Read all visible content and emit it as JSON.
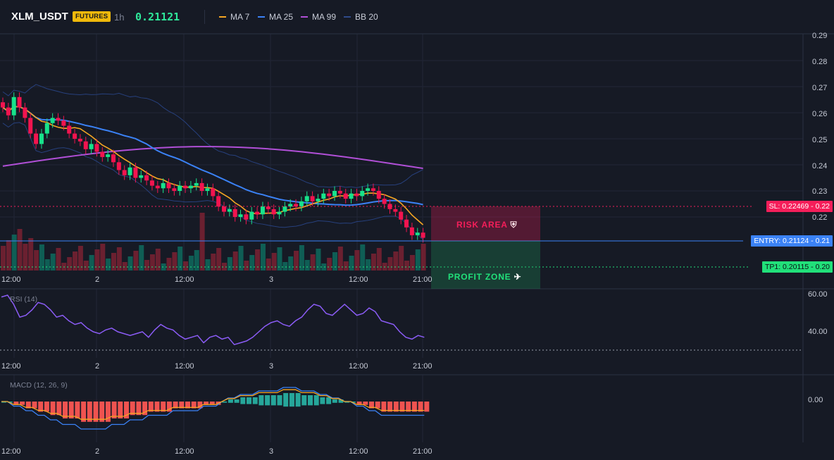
{
  "header": {
    "symbol": "XLM_USDT",
    "badge": "FUTURES",
    "timeframe": "1h",
    "price": "0.21121",
    "legend": [
      {
        "label": "MA 7",
        "color": "#f5a623"
      },
      {
        "label": "MA 25",
        "color": "#3b82f6"
      },
      {
        "label": "MA 99",
        "color": "#b04fd6"
      },
      {
        "label": "BB 20",
        "color": "#2f4a8a"
      }
    ]
  },
  "colors": {
    "up": "#17e38b",
    "down": "#f2144f",
    "background": "#161a25",
    "grid": "#212636"
  },
  "price_axis": {
    "ticks": [
      "0.29",
      "0.28",
      "0.27",
      "0.26",
      "0.25",
      "0.24",
      "0.23",
      "0.22",
      "0.21",
      "0.20"
    ],
    "markers": [
      {
        "label": "SL: 0.22469",
        "value": "0.22",
        "color": "#f51e5a"
      },
      {
        "label": "ENTRY: 0.21124",
        "value": "0.21",
        "color": "#3b82f6"
      },
      {
        "label": "TP1: 0.20115",
        "value": "0.20",
        "color": "#21e07a"
      }
    ]
  },
  "zones": {
    "risk": "RISK AREA",
    "profit": "PROFIT ZONE"
  },
  "time_axis": [
    "12:00",
    "2",
    "12:00",
    "3",
    "12:00",
    "21:00"
  ],
  "rsi": {
    "title": "RSI (14)",
    "ticks": [
      "60.00",
      "40.00"
    ]
  },
  "macd": {
    "title": "MACD (12, 26, 9)",
    "ticks": [
      "0.00"
    ]
  },
  "chart_data": {
    "type": "candlestick",
    "series": [
      {
        "name": "MA 7"
      },
      {
        "name": "MA 25"
      },
      {
        "name": "MA 99"
      },
      {
        "name": "BB 20"
      }
    ],
    "closes": [
      0.262,
      0.259,
      0.266,
      0.262,
      0.258,
      0.252,
      0.248,
      0.252,
      0.256,
      0.258,
      0.257,
      0.255,
      0.252,
      0.25,
      0.249,
      0.246,
      0.248,
      0.245,
      0.243,
      0.244,
      0.241,
      0.238,
      0.236,
      0.239,
      0.235,
      0.236,
      0.234,
      0.232,
      0.231,
      0.233,
      0.231,
      0.23,
      0.232,
      0.231,
      0.232,
      0.233,
      0.23,
      0.231,
      0.228,
      0.224,
      0.222,
      0.223,
      0.22,
      0.221,
      0.219,
      0.222,
      0.221,
      0.224,
      0.223,
      0.221,
      0.222,
      0.224,
      0.225,
      0.224,
      0.226,
      0.228,
      0.226,
      0.227,
      0.229,
      0.228,
      0.23,
      0.229,
      0.227,
      0.229,
      0.228,
      0.23,
      0.231,
      0.23,
      0.227,
      0.225,
      0.223,
      0.222,
      0.219,
      0.216,
      0.213,
      0.214,
      0.212
    ],
    "rsi": [
      59,
      60,
      55,
      48,
      49,
      52,
      56,
      55,
      52,
      48,
      49,
      46,
      44,
      45,
      42,
      40,
      39,
      41,
      42,
      40,
      39,
      38,
      39,
      40,
      37,
      41,
      44,
      42,
      41,
      38,
      36,
      37,
      38,
      34,
      37,
      38,
      36,
      37,
      33,
      34,
      35,
      37,
      40,
      43,
      45,
      46,
      44,
      43,
      46,
      48,
      52,
      55,
      54,
      50,
      49,
      52,
      55,
      52,
      49,
      50,
      53,
      51,
      46,
      45,
      44,
      40,
      37,
      36,
      38,
      37
    ],
    "macd": [
      0,
      0,
      -0.001,
      -0.001,
      -0.002,
      -0.002,
      -0.003,
      -0.003,
      -0.004,
      -0.004,
      -0.005,
      -0.005,
      -0.005,
      -0.006,
      -0.006,
      -0.006,
      -0.006,
      -0.006,
      -0.005,
      -0.005,
      -0.005,
      -0.004,
      -0.004,
      -0.004,
      -0.003,
      -0.003,
      -0.003,
      -0.003,
      -0.002,
      -0.002,
      -0.002,
      -0.002,
      -0.002,
      -0.001,
      -0.001,
      -0.001,
      0,
      0.001,
      0.001,
      0.002,
      0.002,
      0.002,
      0.003,
      0.003,
      0.003,
      0.003,
      0.004,
      0.004,
      0.004,
      0.003,
      0.003,
      0.003,
      0.002,
      0.002,
      0.001,
      0.001,
      0,
      0,
      -0.001,
      -0.001,
      -0.002,
      -0.002,
      -0.003,
      -0.003,
      -0.003,
      -0.003,
      -0.003,
      -0.003,
      -0.003,
      -0.003
    ]
  }
}
